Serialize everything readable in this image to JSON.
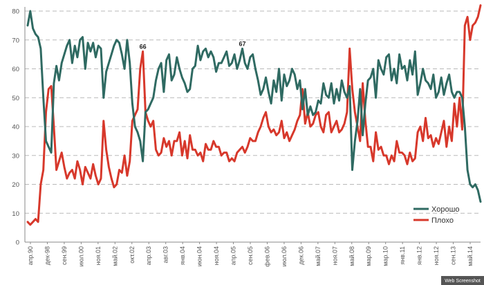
{
  "colors": {
    "good": "#2f6a62",
    "bad": "#d7382b",
    "grid": "#b9b9b9",
    "axis": "#888888"
  },
  "credit": "Web Screenshot",
  "chart_data": {
    "type": "line",
    "title": "",
    "xlabel": "",
    "ylabel": "",
    "ylim": [
      0,
      80
    ],
    "yticks": [
      0,
      10,
      20,
      30,
      40,
      50,
      60,
      70,
      80
    ],
    "grid": true,
    "legend_position": "bottom-right",
    "x_labels": [
      "апр.90",
      "дек-98",
      "сен.99",
      "июл.00",
      "ноя.01",
      "май.02",
      "окт.02",
      "апр.03",
      "авг.03",
      "янв.04",
      "июн.04",
      "ноя.04",
      "апр.05",
      "сен.05",
      "фев.06",
      "июл.06",
      "дек.06",
      "май.07",
      "ноя.07",
      "май.08",
      "мар.09",
      "мар.10",
      "янв.11",
      "янв.12",
      "ноя.12",
      "сен.13",
      "май.14"
    ],
    "series": [
      {
        "name": "Хорошо",
        "color_key": "good",
        "values": [
          75,
          80,
          74,
          72,
          71,
          67,
          50,
          35,
          33,
          31,
          55,
          61,
          56,
          62,
          65,
          68,
          70,
          62,
          68,
          64,
          70,
          71,
          60,
          69,
          66,
          69,
          64,
          68,
          67,
          50,
          59,
          62,
          65,
          68,
          70,
          69,
          65,
          60,
          70,
          62,
          48,
          40,
          38,
          35,
          28,
          45,
          46,
          48,
          50,
          56,
          60,
          62,
          52,
          63,
          65,
          56,
          58,
          64,
          60,
          57,
          55,
          52,
          53,
          60,
          61,
          68,
          63,
          66,
          67,
          64,
          66,
          64,
          59,
          62,
          62,
          64,
          66,
          61,
          62,
          65,
          60,
          63,
          67,
          62,
          60,
          64,
          65,
          60,
          56,
          51,
          53,
          57,
          52,
          48,
          56,
          52,
          60,
          49,
          58,
          54,
          56,
          60,
          58,
          53,
          56,
          46,
          53,
          44,
          47,
          44,
          45,
          49,
          48,
          55,
          51,
          50,
          55,
          48,
          53,
          49,
          56,
          52,
          50,
          54,
          25,
          35,
          42,
          53,
          37,
          48,
          56,
          57,
          60,
          50,
          63,
          60,
          58,
          64,
          65,
          56,
          60,
          55,
          65,
          60,
          61,
          56,
          63,
          58,
          66,
          51,
          55,
          60,
          56,
          55,
          53,
          58,
          50,
          52,
          57,
          51,
          55,
          58,
          52,
          50,
          52,
          52,
          50,
          40,
          25,
          20,
          19,
          20,
          18,
          14
        ],
        "annotation": null
      },
      {
        "name": "Плохо",
        "color_key": "bad",
        "values": [
          7,
          6,
          7,
          8,
          7,
          20,
          25,
          45,
          53,
          54,
          40,
          25,
          28,
          31,
          26,
          22,
          24,
          25,
          22,
          28,
          25,
          20,
          26,
          24,
          22,
          27,
          23,
          20,
          22,
          42,
          32,
          26,
          22,
          19,
          20,
          25,
          24,
          30,
          23,
          28,
          42,
          44,
          46,
          60,
          66,
          45,
          42,
          40,
          42,
          32,
          30,
          31,
          36,
          33,
          35,
          30,
          35,
          35,
          38,
          30,
          35,
          29,
          37,
          32,
          32,
          30,
          31,
          28,
          34,
          32,
          32,
          35,
          33,
          33,
          30,
          31,
          31,
          28,
          29,
          28,
          31,
          32,
          33,
          31,
          33,
          36,
          35,
          35,
          38,
          40,
          43,
          45,
          40,
          38,
          39,
          37,
          38,
          42,
          36,
          38,
          35,
          37,
          39,
          42,
          44,
          53,
          41,
          45,
          40,
          41,
          44,
          45,
          40,
          38,
          44,
          45,
          38,
          40,
          42,
          38,
          39,
          41,
          45,
          67,
          53,
          45,
          40,
          35,
          55,
          42,
          33,
          33,
          28,
          38,
          32,
          33,
          30,
          30,
          27,
          30,
          28,
          35,
          31,
          31,
          30,
          27,
          31,
          28,
          29,
          38,
          40,
          35,
          43,
          36,
          37,
          33,
          36,
          34,
          38,
          42,
          33,
          40,
          35,
          48,
          40,
          50,
          39,
          75,
          78,
          70,
          75,
          76,
          78,
          82
        ],
        "annotation": "66"
      }
    ],
    "annotations": [
      {
        "series": "Плохо",
        "label": "66"
      },
      {
        "series": "Хорошо",
        "label": "67"
      }
    ]
  }
}
